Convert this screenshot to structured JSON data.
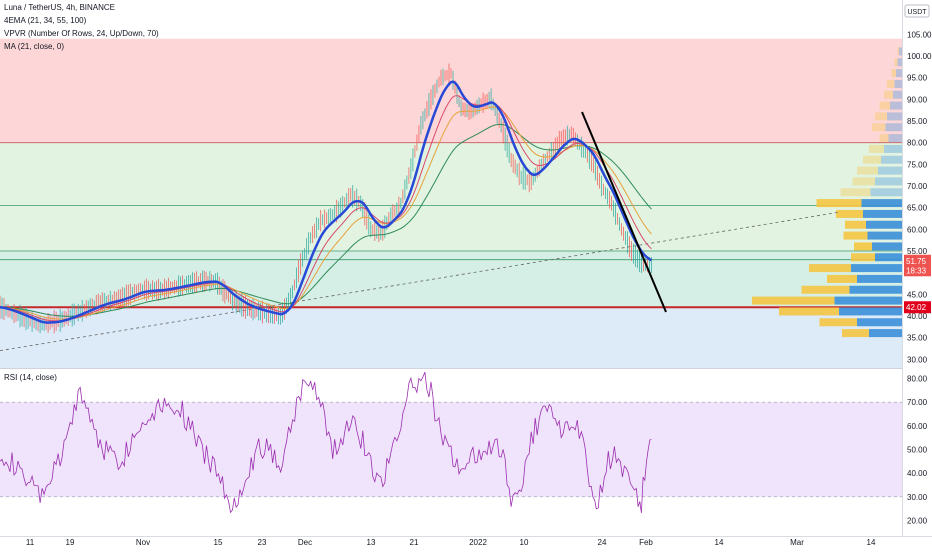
{
  "chart_data": {
    "type": "candlestick",
    "symbol_line": "Luna / TetherUS, 4h, BINANCE",
    "quote_currency": "USDT",
    "indicators": [
      "4EMA (21, 34, 55, 100)",
      "VPVR (Number Of Rows, 24, Up/Down, 70)",
      "MA (21, close, 0)"
    ],
    "price_axis": {
      "ticks": [
        "105.00",
        "100.00",
        "95.00",
        "90.00",
        "85.00",
        "80.00",
        "75.00",
        "70.00",
        "65.00",
        "60.00",
        "55.00",
        "50.00",
        "45.00",
        "40.00",
        "35.00",
        "30.00"
      ],
      "ylim": [
        28,
        106
      ]
    },
    "time_axis": {
      "ticks": [
        "11",
        "19",
        "Nov",
        "15",
        "23",
        "Dec",
        "13",
        "21",
        "2022",
        "10",
        "24",
        "Feb",
        "14",
        "Mar",
        "14"
      ]
    },
    "price_close_path": [
      {
        "t": 0,
        "p": 42
      },
      {
        "t": 20,
        "p": 40
      },
      {
        "t": 40,
        "p": 38
      },
      {
        "t": 60,
        "p": 39
      },
      {
        "t": 80,
        "p": 41
      },
      {
        "t": 100,
        "p": 43
      },
      {
        "t": 120,
        "p": 44
      },
      {
        "t": 140,
        "p": 46
      },
      {
        "t": 160,
        "p": 46
      },
      {
        "t": 180,
        "p": 47
      },
      {
        "t": 200,
        "p": 48
      },
      {
        "t": 215,
        "p": 48
      },
      {
        "t": 230,
        "p": 44
      },
      {
        "t": 245,
        "p": 42
      },
      {
        "t": 260,
        "p": 41
      },
      {
        "t": 280,
        "p": 40
      },
      {
        "t": 290,
        "p": 44
      },
      {
        "t": 300,
        "p": 52
      },
      {
        "t": 310,
        "p": 58
      },
      {
        "t": 320,
        "p": 62
      },
      {
        "t": 330,
        "p": 63
      },
      {
        "t": 340,
        "p": 65
      },
      {
        "t": 350,
        "p": 68
      },
      {
        "t": 360,
        "p": 66
      },
      {
        "t": 370,
        "p": 60
      },
      {
        "t": 380,
        "p": 59
      },
      {
        "t": 390,
        "p": 63
      },
      {
        "t": 400,
        "p": 66
      },
      {
        "t": 410,
        "p": 74
      },
      {
        "t": 420,
        "p": 84
      },
      {
        "t": 430,
        "p": 90
      },
      {
        "t": 440,
        "p": 95
      },
      {
        "t": 450,
        "p": 96
      },
      {
        "t": 460,
        "p": 88
      },
      {
        "t": 470,
        "p": 87
      },
      {
        "t": 480,
        "p": 89
      },
      {
        "t": 490,
        "p": 90
      },
      {
        "t": 500,
        "p": 84
      },
      {
        "t": 510,
        "p": 76
      },
      {
        "t": 520,
        "p": 72
      },
      {
        "t": 530,
        "p": 71
      },
      {
        "t": 540,
        "p": 75
      },
      {
        "t": 550,
        "p": 78
      },
      {
        "t": 560,
        "p": 81
      },
      {
        "t": 570,
        "p": 82
      },
      {
        "t": 580,
        "p": 79
      },
      {
        "t": 590,
        "p": 76
      },
      {
        "t": 600,
        "p": 70
      },
      {
        "t": 610,
        "p": 66
      },
      {
        "t": 620,
        "p": 60
      },
      {
        "t": 630,
        "p": 55
      },
      {
        "t": 640,
        "p": 52
      },
      {
        "t": 650,
        "p": 51.75
      }
    ],
    "horizontal_zones": [
      {
        "from": 80,
        "to": 104,
        "color": "#fdd7d7"
      },
      {
        "from": 55,
        "to": 80,
        "color": "#e3f3e1"
      },
      {
        "from": 42,
        "to": 55,
        "color": "#d6efe6"
      },
      {
        "from": 28,
        "to": 42,
        "color": "#ddeaf7"
      }
    ],
    "horizontal_levels": [
      80,
      65.5,
      55,
      53,
      42.02
    ],
    "current_price_label": "51.75",
    "countdown_label": "18:33",
    "support_label": "42.02",
    "volume_profile": [
      {
        "price": 101,
        "up": 1,
        "down": 2
      },
      {
        "price": 98.5,
        "up": 2,
        "down": 3
      },
      {
        "price": 96,
        "up": 3,
        "down": 4
      },
      {
        "price": 93.5,
        "up": 5,
        "down": 5
      },
      {
        "price": 91,
        "up": 6,
        "down": 6
      },
      {
        "price": 88.5,
        "up": 7,
        "down": 8
      },
      {
        "price": 86,
        "up": 8,
        "down": 10
      },
      {
        "price": 83.5,
        "up": 9,
        "down": 11
      },
      {
        "price": 81,
        "up": 6,
        "down": 9
      },
      {
        "price": 78.5,
        "up": 10,
        "down": 12
      },
      {
        "price": 76,
        "up": 12,
        "down": 14
      },
      {
        "price": 73.5,
        "up": 14,
        "down": 16
      },
      {
        "price": 71,
        "up": 15,
        "down": 18
      },
      {
        "price": 68.5,
        "up": 20,
        "down": 21
      },
      {
        "price": 66,
        "up": 30,
        "down": 27
      },
      {
        "price": 63.5,
        "up": 18,
        "down": 26
      },
      {
        "price": 61,
        "up": 14,
        "down": 24
      },
      {
        "price": 58.5,
        "up": 16,
        "down": 23
      },
      {
        "price": 56,
        "up": 12,
        "down": 20
      },
      {
        "price": 53.5,
        "up": 16,
        "down": 18
      },
      {
        "price": 51,
        "up": 28,
        "down": 34
      },
      {
        "price": 48.5,
        "up": 20,
        "down": 30
      },
      {
        "price": 46,
        "up": 32,
        "down": 35
      },
      {
        "price": 43.5,
        "up": 55,
        "down": 45
      },
      {
        "price": 41,
        "up": 40,
        "down": 42
      },
      {
        "price": 38.5,
        "up": 25,
        "down": 30
      },
      {
        "price": 36,
        "up": 18,
        "down": 22
      }
    ],
    "volume_profile_colors": {
      "up": "#f4c542",
      "down": "#3b8fd9"
    },
    "rsi": {
      "label": "RSI (14, close)",
      "ticks": [
        "80.00",
        "70.00",
        "60.00",
        "50.00",
        "40.00",
        "30.00",
        "20.00"
      ],
      "ylim": [
        16,
        84
      ],
      "upper_band": 70,
      "lower_band": 30,
      "band_color": "#efe4fb",
      "line_color": "#9c2fb0",
      "path": [
        {
          "t": 0,
          "v": 50
        },
        {
          "t": 20,
          "v": 40
        },
        {
          "t": 40,
          "v": 30
        },
        {
          "t": 60,
          "v": 45
        },
        {
          "t": 80,
          "v": 75
        },
        {
          "t": 100,
          "v": 52
        },
        {
          "t": 120,
          "v": 45
        },
        {
          "t": 140,
          "v": 60
        },
        {
          "t": 160,
          "v": 70
        },
        {
          "t": 180,
          "v": 68
        },
        {
          "t": 200,
          "v": 50
        },
        {
          "t": 220,
          "v": 40
        },
        {
          "t": 230,
          "v": 22
        },
        {
          "t": 245,
          "v": 40
        },
        {
          "t": 260,
          "v": 52
        },
        {
          "t": 280,
          "v": 45
        },
        {
          "t": 300,
          "v": 75
        },
        {
          "t": 310,
          "v": 80
        },
        {
          "t": 320,
          "v": 72
        },
        {
          "t": 330,
          "v": 50
        },
        {
          "t": 340,
          "v": 52
        },
        {
          "t": 350,
          "v": 65
        },
        {
          "t": 360,
          "v": 55
        },
        {
          "t": 380,
          "v": 35
        },
        {
          "t": 400,
          "v": 62
        },
        {
          "t": 410,
          "v": 76
        },
        {
          "t": 420,
          "v": 80
        },
        {
          "t": 430,
          "v": 75
        },
        {
          "t": 440,
          "v": 55
        },
        {
          "t": 460,
          "v": 42
        },
        {
          "t": 480,
          "v": 50
        },
        {
          "t": 500,
          "v": 50
        },
        {
          "t": 510,
          "v": 30
        },
        {
          "t": 520,
          "v": 35
        },
        {
          "t": 530,
          "v": 55
        },
        {
          "t": 540,
          "v": 65
        },
        {
          "t": 550,
          "v": 68
        },
        {
          "t": 560,
          "v": 60
        },
        {
          "t": 570,
          "v": 55
        },
        {
          "t": 580,
          "v": 60
        },
        {
          "t": 590,
          "v": 30
        },
        {
          "t": 595,
          "v": 22
        },
        {
          "t": 605,
          "v": 45
        },
        {
          "t": 615,
          "v": 48
        },
        {
          "t": 625,
          "v": 40
        },
        {
          "t": 635,
          "v": 30
        },
        {
          "t": 640,
          "v": 28
        },
        {
          "t": 645,
          "v": 48
        },
        {
          "t": 650,
          "v": 52
        }
      ]
    }
  }
}
